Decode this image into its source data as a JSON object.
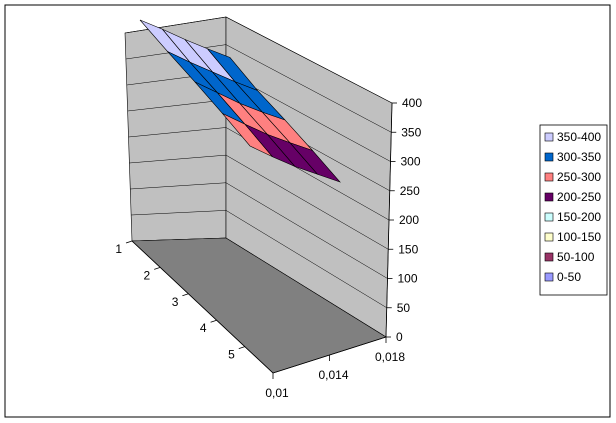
{
  "chart_data": {
    "type": "surface",
    "title": "",
    "xlabel": "",
    "ylabel": "",
    "zlabel": "",
    "x_ticks": [
      "0,01",
      "0,014",
      "0,018"
    ],
    "y_ticks": [
      "1",
      "2",
      "3",
      "4",
      "5"
    ],
    "z_ticks": [
      "0",
      "50",
      "100",
      "150",
      "200",
      "250",
      "300",
      "350",
      "400"
    ],
    "zlim": [
      0,
      400
    ],
    "grid": true,
    "legend_position": "right",
    "legend": [
      {
        "label": "350-400",
        "color": "#ccccff"
      },
      {
        "label": "300-350",
        "color": "#0066cc"
      },
      {
        "label": "250-300",
        "color": "#ff8080"
      },
      {
        "label": "200-250",
        "color": "#660066"
      },
      {
        "label": "150-200",
        "color": "#ccffff"
      },
      {
        "label": "100-150",
        "color": "#ffffcc"
      },
      {
        "label": "50-100",
        "color": "#993366"
      },
      {
        "label": "0-50",
        "color": "#9999ff"
      }
    ],
    "x": [
      0.01,
      0.012,
      0.014,
      0.016,
      0.018
    ],
    "y": [
      1,
      2,
      3,
      4,
      5
    ],
    "z": [
      [
        400,
        395,
        380,
        375,
        375
      ],
      [
        360,
        340,
        330,
        320,
        320
      ],
      [
        330,
        310,
        290,
        290,
        300
      ],
      [
        290,
        270,
        255,
        260,
        270
      ],
      [
        240,
        220,
        210,
        220,
        230
      ]
    ]
  }
}
